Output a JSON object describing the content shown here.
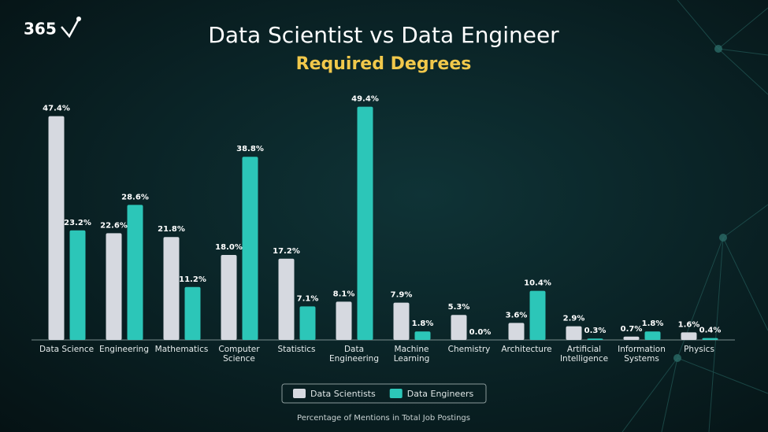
{
  "logo": "365",
  "chart_data": {
    "type": "bar",
    "title": "Data Scientist vs Data Engineer",
    "subtitle": "Required Degrees",
    "x_label": "Percentage of Mentions in Total Job Postings",
    "categories": [
      "Data Science",
      "Engineering",
      "Mathematics",
      "Computer Science",
      "Statistics",
      "Data Engineering",
      "Machine Learning",
      "Chemistry",
      "Architecture",
      "Artificial Intelligence",
      "Information Systems",
      "Physics"
    ],
    "series": [
      {
        "name": "Data Scientists",
        "color": "#d6d9e0",
        "values": [
          47.4,
          22.6,
          21.8,
          18.0,
          17.2,
          8.1,
          7.9,
          5.3,
          3.6,
          2.9,
          0.7,
          1.6
        ],
        "value_labels": [
          "47.4%",
          "22.6%",
          "21.8%",
          "18.0%",
          "17.2%",
          "8.1%",
          "7.9%",
          "5.3%",
          "3.6%",
          "2.9%",
          "0.7%",
          "1.6%"
        ]
      },
      {
        "name": "Data Engineers",
        "color": "#2cc6b8",
        "values": [
          23.2,
          28.6,
          11.2,
          38.8,
          7.1,
          49.4,
          1.8,
          0.0,
          10.4,
          0.3,
          1.8,
          0.4
        ],
        "value_labels": [
          "23.2%",
          "28.6%",
          "11.2%",
          "38.8%",
          "7.1%",
          "49.4%",
          "1.8%",
          "0.0%",
          "10.4%",
          "0.3%",
          "1.8%",
          "0.4%"
        ]
      }
    ],
    "ylim": [
      0,
      50
    ]
  }
}
